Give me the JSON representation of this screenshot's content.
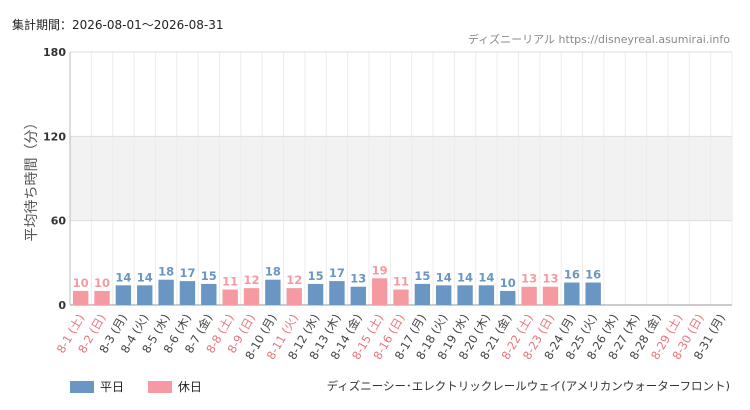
{
  "header": {
    "period_label": "集計期間：2026-08-01～2026-08-31",
    "source_label": "ディズニーリアル https://disneyreal.asumirai.info"
  },
  "footer": {
    "subtitle": "ディズニーシー･エレクトリックレールウェイ(アメリカンウォーターフロント)"
  },
  "legend": [
    {
      "label": "平日",
      "color": "#6a96c4"
    },
    {
      "label": "休日",
      "color": "#f49aa0"
    }
  ],
  "chart_data": {
    "type": "bar",
    "ylabel": "平均待ち時間（分）",
    "ylim": [
      0,
      180
    ],
    "yticks": [
      0,
      60,
      120,
      180
    ],
    "shaded_band": [
      60,
      120
    ],
    "categories": [
      "8-1 (土)",
      "8-2 (日)",
      "8-3 (月)",
      "8-4 (火)",
      "8-5 (水)",
      "8-6 (木)",
      "8-7 (金)",
      "8-8 (土)",
      "8-9 (日)",
      "8-10 (月)",
      "8-11 (火)",
      "8-12 (水)",
      "8-13 (木)",
      "8-14 (金)",
      "8-15 (土)",
      "8-16 (日)",
      "8-17 (月)",
      "8-18 (火)",
      "8-19 (水)",
      "8-20 (木)",
      "8-21 (金)",
      "8-22 (土)",
      "8-23 (日)",
      "8-24 (月)",
      "8-25 (火)",
      "8-26 (水)",
      "8-27 (木)",
      "8-28 (金)",
      "8-29 (土)",
      "8-30 (日)",
      "8-31 (月)"
    ],
    "values": [
      10,
      10,
      14,
      14,
      18,
      17,
      15,
      11,
      12,
      18,
      12,
      15,
      17,
      13,
      19,
      11,
      15,
      14,
      14,
      14,
      10,
      13,
      13,
      16,
      16,
      null,
      null,
      null,
      null,
      null,
      null
    ],
    "day_type": [
      "休日",
      "休日",
      "平日",
      "平日",
      "平日",
      "平日",
      "平日",
      "休日",
      "休日",
      "平日",
      "休日",
      "平日",
      "平日",
      "平日",
      "休日",
      "休日",
      "平日",
      "平日",
      "平日",
      "平日",
      "平日",
      "休日",
      "休日",
      "平日",
      "平日",
      "平日",
      "平日",
      "平日",
      "休日",
      "休日",
      "平日"
    ],
    "colors": {
      "平日": "#6a96c4",
      "休日": "#f49aa0",
      "平日_text": "#444444",
      "休日_text": "#e8757d"
    }
  }
}
